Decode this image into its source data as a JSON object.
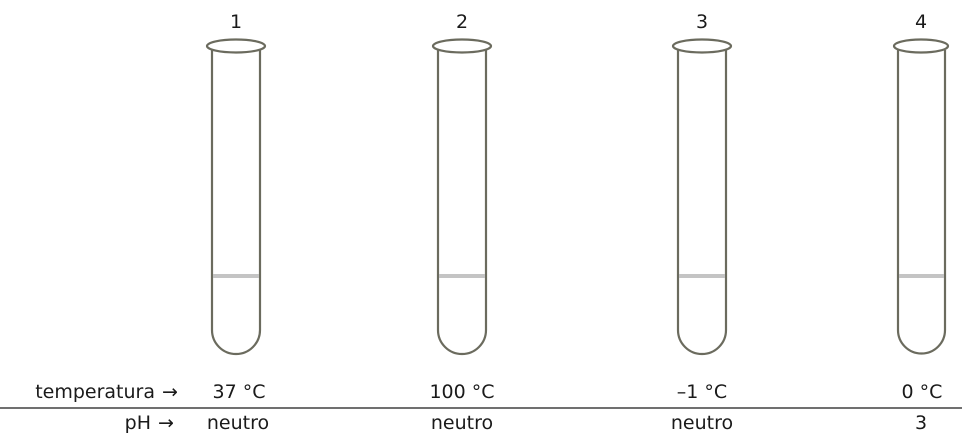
{
  "tubes": [
    {
      "number": "1",
      "temperature": "37 °C",
      "ph": "neutro"
    },
    {
      "number": "2",
      "temperature": "100 °C",
      "ph": "neutro"
    },
    {
      "number": "3",
      "temperature": "–1 °C",
      "ph": "neutro"
    },
    {
      "number": "4",
      "temperature": "0 °C",
      "ph": "3"
    }
  ],
  "row_labels": {
    "temperature": "temperatura",
    "ph": "pH"
  },
  "arrow": "→",
  "colors": {
    "tube_outline": "#6b6b5e",
    "liquid_line": "#c4c4c4",
    "divider": "#1a1a1a",
    "text": "#1a1a1a"
  }
}
